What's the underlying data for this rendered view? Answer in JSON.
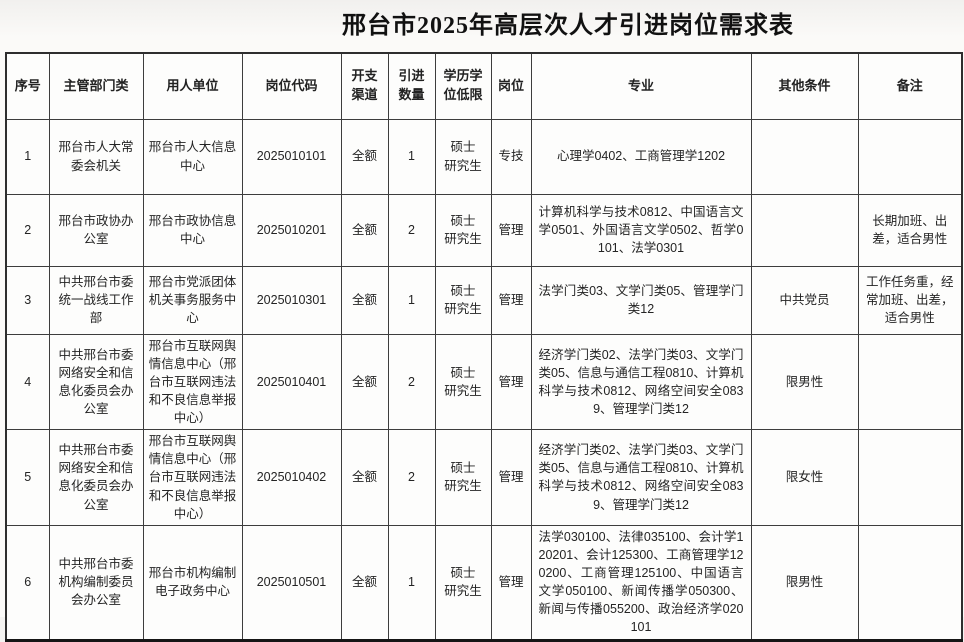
{
  "title": "邢台市2025年高层次人才引进岗位需求表",
  "table": {
    "headers": [
      "序号",
      "主管部门类",
      "用人单位",
      "岗位代码",
      "开支\n渠道",
      "引进\n数量",
      "学历学\n位低限",
      "岗位",
      "专业",
      "其他条件",
      "备注"
    ],
    "header_keys": [
      "seq",
      "department",
      "employer",
      "code",
      "channel",
      "quantity",
      "degree",
      "post",
      "major",
      "other",
      "remark"
    ],
    "rows": [
      {
        "seq": "1",
        "department": "邢台市人大常委会机关",
        "employer": "邢台市人大信息中心",
        "code": "2025010101",
        "channel": "全额",
        "quantity": "1",
        "degree": "硕士\n研究生",
        "post": "专技",
        "major": "心理学0402、工商管理学1202",
        "other": "",
        "remark": ""
      },
      {
        "seq": "2",
        "department": "邢台市政协办公室",
        "employer": "邢台市政协信息中心",
        "code": "2025010201",
        "channel": "全额",
        "quantity": "2",
        "degree": "硕士\n研究生",
        "post": "管理",
        "major": "计算机科学与技术0812、中国语言文学0501、外国语言文学0502、哲学0101、法学0301",
        "other": "",
        "remark": "长期加班、出差，适合男性"
      },
      {
        "seq": "3",
        "department": "中共邢台市委统一战线工作部",
        "employer": "邢台市党派团体机关事务服务中心",
        "code": "2025010301",
        "channel": "全额",
        "quantity": "1",
        "degree": "硕士\n研究生",
        "post": "管理",
        "major": "法学门类03、文学门类05、管理学门类12",
        "other": "中共党员",
        "remark": "工作任务重，经常加班、出差，适合男性"
      },
      {
        "seq": "4",
        "department": "中共邢台市委网络安全和信息化委员会办公室",
        "employer": "邢台市互联网舆情信息中心（邢台市互联网违法和不良信息举报中心）",
        "code": "2025010401",
        "channel": "全额",
        "quantity": "2",
        "degree": "硕士\n研究生",
        "post": "管理",
        "major": "经济学门类02、法学门类03、文学门类05、信息与通信工程0810、计算机科学与技术0812、网络空间安全0839、管理学门类12",
        "other": "限男性",
        "remark": ""
      },
      {
        "seq": "5",
        "department": "中共邢台市委网络安全和信息化委员会办公室",
        "employer": "邢台市互联网舆情信息中心（邢台市互联网违法和不良信息举报中心）",
        "code": "2025010402",
        "channel": "全额",
        "quantity": "2",
        "degree": "硕士\n研究生",
        "post": "管理",
        "major": "经济学门类02、法学门类03、文学门类05、信息与通信工程0810、计算机科学与技术0812、网络空间安全0839、管理学门类12",
        "other": "限女性",
        "remark": ""
      },
      {
        "seq": "6",
        "department": "中共邢台市委机构编制委员会办公室",
        "employer": "邢台市机构编制电子政务中心",
        "code": "2025010501",
        "channel": "全额",
        "quantity": "1",
        "degree": "硕士\n研究生",
        "post": "管理",
        "major": "法学030100、法律035100、会计学120201、会计125300、工商管理学120200、工商管理125100、中国语言文学050100、新闻传播学050300、新闻与传播055200、政治经济学020101",
        "other": "限男性",
        "remark": ""
      }
    ]
  }
}
